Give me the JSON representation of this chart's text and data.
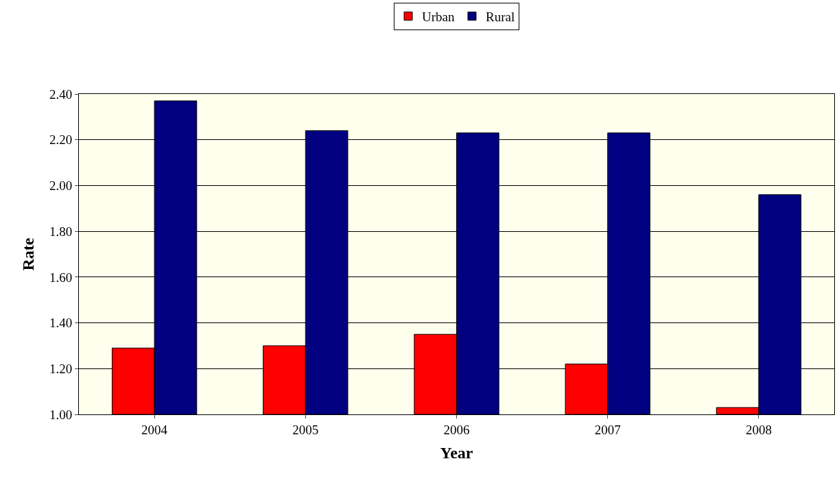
{
  "chart_data": {
    "type": "bar",
    "xlabel": "Year",
    "ylabel": "Rate",
    "categories": [
      "2004",
      "2005",
      "2006",
      "2007",
      "2008"
    ],
    "series": [
      {
        "name": "Urban",
        "color": "#ff0000",
        "values": [
          1.29,
          1.3,
          1.35,
          1.22,
          1.03
        ]
      },
      {
        "name": "Rural",
        "color": "#000080",
        "values": [
          2.37,
          2.24,
          2.23,
          2.23,
          1.96
        ]
      }
    ],
    "ylim": [
      1.0,
      2.4
    ],
    "yticks": [
      {
        "value": 1.0,
        "label": "1.00"
      },
      {
        "value": 1.2,
        "label": "1.20"
      },
      {
        "value": 1.4,
        "label": "1.40"
      },
      {
        "value": 1.6,
        "label": "1.60"
      },
      {
        "value": 1.8,
        "label": "1.80"
      },
      {
        "value": 2.0,
        "label": "2.00"
      },
      {
        "value": 2.2,
        "label": "2.20"
      },
      {
        "value": 2.4,
        "label": "2.40"
      }
    ],
    "grid": "y",
    "legend": "top"
  }
}
